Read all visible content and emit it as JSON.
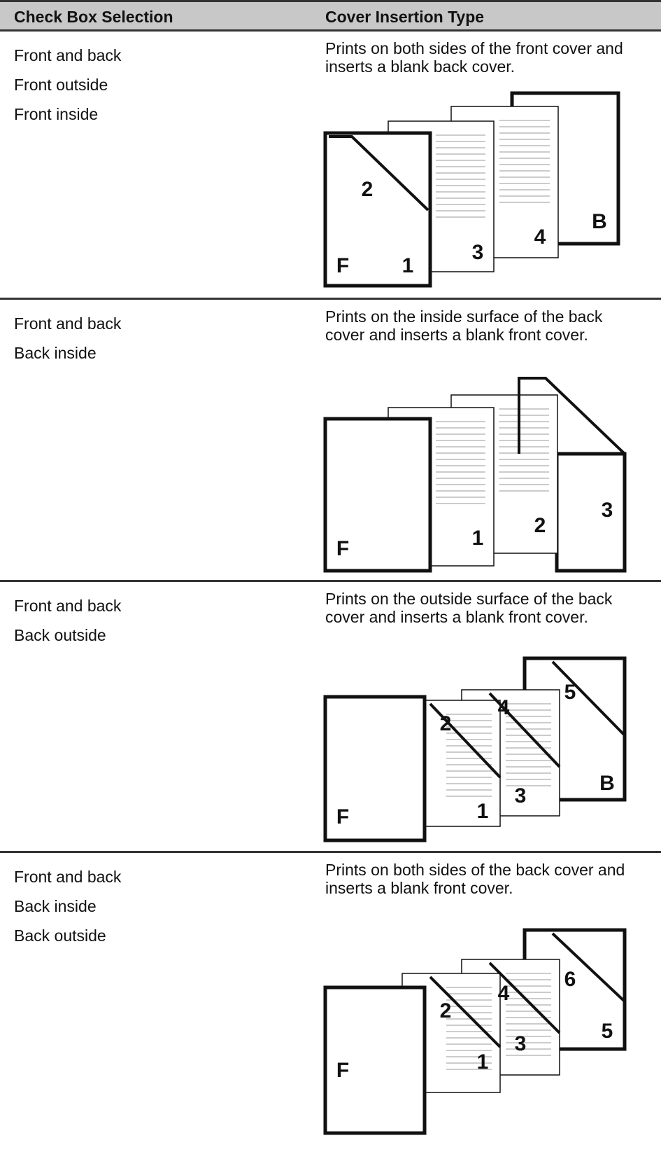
{
  "table": {
    "headers": [
      "Check Box Selection",
      "Cover Insertion Type"
    ],
    "rows": [
      {
        "selections": [
          "Front and back",
          "Front outside",
          "Front inside"
        ],
        "description": "Prints on both sides of the front cover and inserts a blank back cover.",
        "figure_labels": [
          "2",
          "B",
          "4",
          "3",
          "F",
          "1"
        ]
      },
      {
        "selections": [
          "Front and back",
          "Back inside"
        ],
        "description": "Prints on the inside surface of the back cover and inserts a blank front cover.",
        "figure_labels": [
          "F",
          "1",
          "2",
          "3"
        ]
      },
      {
        "selections": [
          "Front and back",
          "Back outside"
        ],
        "description": "Prints on the outside surface of the back cover and inserts a blank front cover.",
        "figure_labels": [
          "2",
          "4",
          "5",
          "B",
          "3",
          "1",
          "F"
        ]
      },
      {
        "selections": [
          "Front and back",
          "Back inside",
          "Back outside"
        ],
        "description": "Prints on both sides of the back cover and inserts a blank front cover.",
        "figure_labels": [
          "2",
          "4",
          "6",
          "5",
          "3",
          "1",
          "F"
        ]
      }
    ]
  }
}
